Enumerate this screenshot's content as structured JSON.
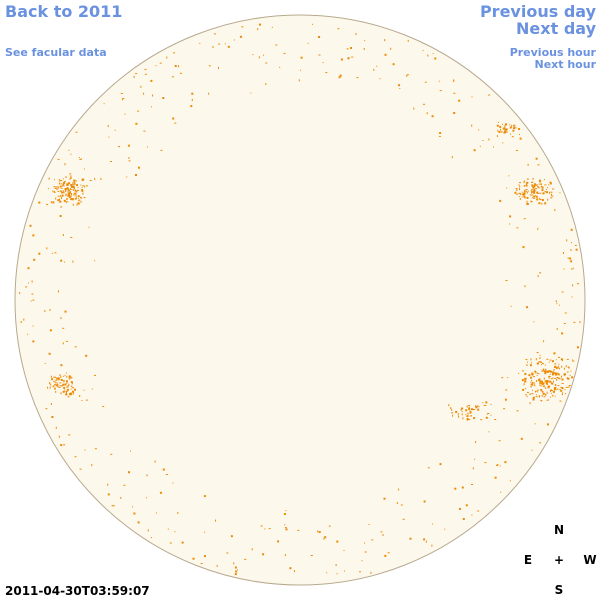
{
  "nav": {
    "back": "Back to 2011",
    "facular": "See facular data",
    "previous_day": "Previous day",
    "next_day": "Next day",
    "previous_hour": "Previous hour",
    "next_hour": "Next hour"
  },
  "compass": {
    "north": "N",
    "east": "E",
    "center": "+",
    "west": "W",
    "south": "S"
  },
  "timestamp": "2011-04-30T03:59:07"
}
